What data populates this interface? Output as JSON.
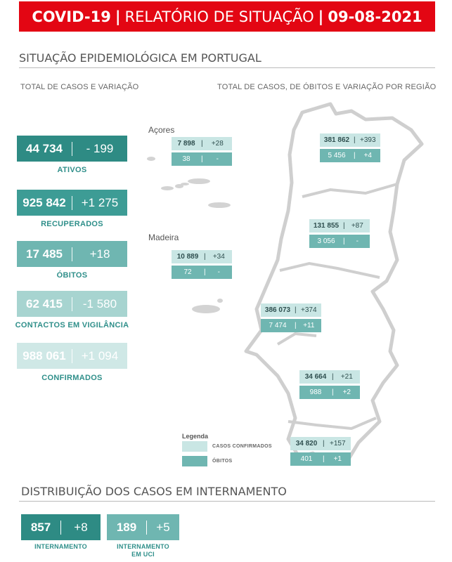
{
  "header": {
    "title": "COVID-19",
    "subtitle": "RELATÓRIO DE SITUAÇÃO",
    "date": "09-08-2021"
  },
  "section1": {
    "title": "SITUAÇÃO EPIDEMIOLÓGICA EM PORTUGAL",
    "left_subtitle": "TOTAL DE CASOS E VARIAÇÃO",
    "right_subtitle": "TOTAL DE CASOS, DE ÓBITOS E VARIAÇÃO POR REGIÃO"
  },
  "stats": [
    {
      "value": "44 734",
      "variation": "- 199",
      "label": "ATIVOS",
      "color": "#2e8b84"
    },
    {
      "value": "925 842",
      "variation": "+1 275",
      "label": "RECUPERADOS",
      "color": "#3d9c95"
    },
    {
      "value": "17 485",
      "variation": "+18",
      "label": "ÓBITOS",
      "color": "#6fb6b1"
    },
    {
      "value": "62 415",
      "variation": "-1 580",
      "label": "CONTACTOS EM VIGILÂNCIA",
      "color": "#a7d4d0"
    },
    {
      "value": "988 061",
      "variation": "+1 094",
      "label": "CONFIRMADOS",
      "color": "#cfe8e6"
    }
  ],
  "islands": {
    "acores": "Açores",
    "madeira": "Madeira"
  },
  "regions": [
    {
      "cases": "7 898",
      "cases_var": "+28",
      "deaths": "38",
      "deaths_var": "-"
    },
    {
      "cases": "10 889",
      "cases_var": "+34",
      "deaths": "72",
      "deaths_var": "-"
    },
    {
      "cases": "381 862",
      "cases_var": "+393",
      "deaths": "5 456",
      "deaths_var": "+4"
    },
    {
      "cases": "131 855",
      "cases_var": "+87",
      "deaths": "3 056",
      "deaths_var": "-"
    },
    {
      "cases": "386 073",
      "cases_var": "+374",
      "deaths": "7 474",
      "deaths_var": "+11"
    },
    {
      "cases": "34 664",
      "cases_var": "+21",
      "deaths": "988",
      "deaths_var": "+2"
    },
    {
      "cases": "34 820",
      "cases_var": "+157",
      "deaths": "401",
      "deaths_var": "+1"
    }
  ],
  "legend": {
    "title": "Legenda",
    "confirmed": "CASOS CONFIRMADOS",
    "deaths": "ÓBITOS"
  },
  "section2": {
    "title": "DISTRIBUIÇÃO DOS CASOS EM INTERNAMENTO"
  },
  "hospital": [
    {
      "value": "857",
      "variation": "+8",
      "label_line1": "INTERNAMENTO",
      "label_line2": "",
      "color": "#2e8b84"
    },
    {
      "value": "189",
      "variation": "+5",
      "label_line1": "INTERNAMENTO",
      "label_line2": "EM UCI",
      "color": "#6fb6b1"
    }
  ]
}
